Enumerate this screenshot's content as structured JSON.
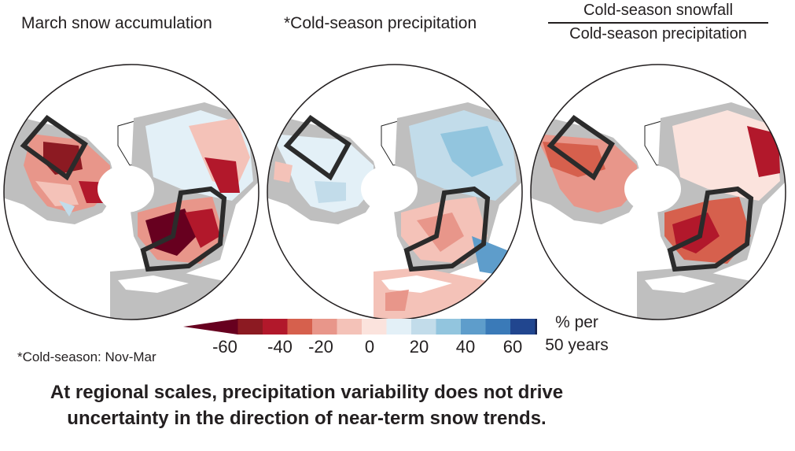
{
  "panels": [
    {
      "title": "March snow accumulation"
    },
    {
      "title": "*Cold-season precipitation"
    },
    {
      "title_numerator": "Cold-season snowfall",
      "title_denominator": "Cold-season precipitation"
    }
  ],
  "colorbar": {
    "ticks": [
      "-60",
      "-40",
      "-20",
      "0",
      "20",
      "40",
      "60"
    ],
    "colors": [
      "#67001f",
      "#8c1a22",
      "#b2182b",
      "#d6604d",
      "#e8968a",
      "#f4c2b8",
      "#fbe3dd",
      "#e3f0f7",
      "#c2dcea",
      "#92c5de",
      "#5e9dcb",
      "#3a7ab8",
      "#21468f",
      "#15224f"
    ],
    "unit_line1": "% per",
    "unit_line2": "50 years"
  },
  "colors": {
    "land_gray": "#bfbfbf",
    "ocean": "#ffffff",
    "box_outline": "#2b2b2b"
  },
  "footnote": "*Cold-season: Nov-Mar",
  "conclusion_line1": "At regional scales, precipitation variability does not drive",
  "conclusion_line2": "uncertainty in the direction of near-term snow trends."
}
